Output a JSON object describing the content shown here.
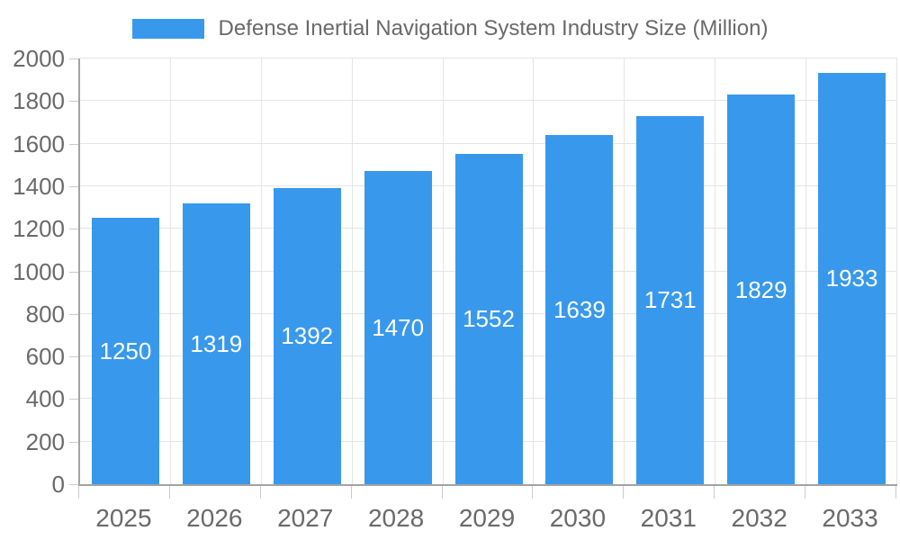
{
  "chart_data": {
    "type": "bar",
    "title": "Defense Inertial Navigation System Industry Size (Million)",
    "legend": {
      "label": "Defense Inertial Navigation System Industry Size (Million)",
      "position": "top"
    },
    "categories": [
      "2025",
      "2026",
      "2027",
      "2028",
      "2029",
      "2030",
      "2031",
      "2032",
      "2033"
    ],
    "values": [
      1250,
      1319,
      1392,
      1470,
      1552,
      1639,
      1731,
      1829,
      1933
    ],
    "bar_value_labels": [
      "1250",
      "1319",
      "1392",
      "1470",
      "1552",
      "1639",
      "1731",
      "1829",
      "1933"
    ],
    "xlabel": "",
    "ylabel": "",
    "ylim": [
      0,
      2000
    ],
    "ytick_step": 200,
    "y_ticks": [
      0,
      200,
      400,
      600,
      800,
      1000,
      1200,
      1400,
      1600,
      1800,
      2000
    ],
    "grid": true,
    "colors": {
      "bar": "#3899EC",
      "grid": "#E5E5E5",
      "axis": "#A3A3A3",
      "tick": "#CBCBCB",
      "axis_label": "#6A6A6A",
      "value_label": "#FFFFFF",
      "background": "#FFFFFF"
    }
  }
}
